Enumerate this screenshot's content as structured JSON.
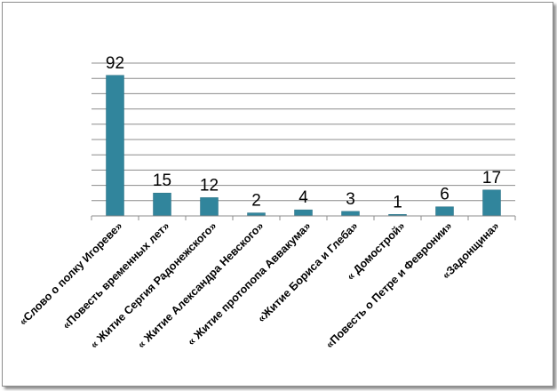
{
  "chart_data": {
    "type": "bar",
    "title": "",
    "xlabel": "",
    "ylabel": "",
    "categories": [
      "«Слово о полку Игореве»",
      "«Повесть временных лет»",
      "« Житие Сергия Радонежского»",
      "« Житие Александра Невского»",
      "« Житие протопопа Аввакума»",
      "«Житие Бориса и Глеба»",
      "« Домострой»",
      "«Повесть о Петре и Февронии»",
      "«Задонщина»"
    ],
    "values": [
      92,
      15,
      12,
      2,
      4,
      3,
      1,
      6,
      17
    ],
    "ylim": [
      0,
      100
    ],
    "gridlines": true,
    "legend": "none",
    "bar_color": "#31859c"
  }
}
